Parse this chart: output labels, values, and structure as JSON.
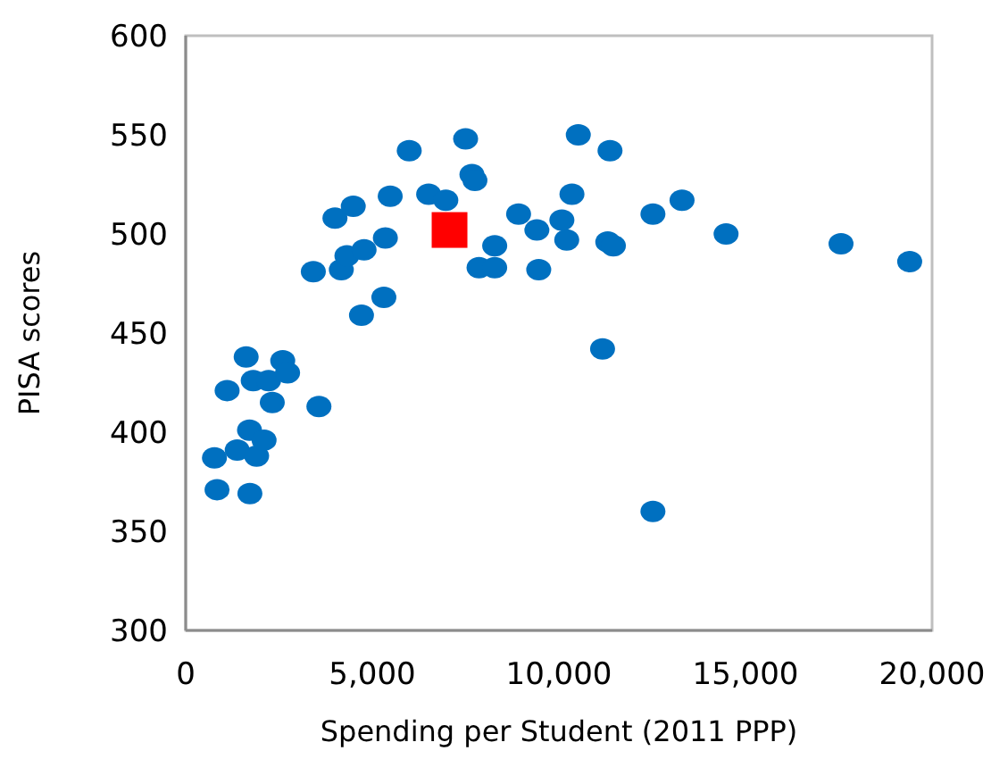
{
  "chart_data": {
    "type": "scatter",
    "xlabel": "Spending per Student (2011 PPP)",
    "ylabel": "PISA scores",
    "xlim": [
      0,
      20000
    ],
    "xticks": [
      {
        "value": 0,
        "label": "0"
      },
      {
        "value": 5000,
        "label": "5,000"
      },
      {
        "value": 10000,
        "label": "10,000"
      },
      {
        "value": 15000,
        "label": "15,000"
      },
      {
        "value": 20000,
        "label": "20,000"
      }
    ],
    "ylim": [
      300,
      600
    ],
    "yticks": [
      300,
      350,
      400,
      450,
      500,
      550,
      600
    ],
    "grid": false,
    "series": [
      {
        "color": "#0070c0",
        "marker": "circle",
        "x": [
          770,
          840,
          1720,
          1110,
          1380,
          1710,
          1900,
          2100,
          1620,
          1810,
          2220,
          2320,
          2600,
          2730,
          3570,
          3420,
          4000,
          4170,
          4320,
          4490,
          4780,
          4710,
          5350,
          5310,
          5480,
          5990,
          6510,
          6970,
          7500,
          7670,
          7750,
          7860,
          8280,
          8280,
          8920,
          9410,
          9460,
          10080,
          10210,
          10350,
          10520,
          11170,
          11370,
          11310,
          11460,
          12520,
          12520,
          13300,
          14480,
          17560,
          19400
        ],
        "values": [
          387,
          371,
          369,
          421,
          391,
          401,
          388,
          396,
          438,
          426,
          426,
          415,
          436,
          430,
          413,
          481,
          508,
          482,
          489,
          514,
          492,
          459,
          498,
          468,
          519,
          542,
          520,
          517,
          548,
          530,
          527,
          483,
          483,
          494,
          510,
          502,
          482,
          507,
          497,
          520,
          550,
          442,
          542,
          496,
          494,
          510,
          360,
          517,
          500,
          495,
          486
        ]
      },
      {
        "color": "#ff0000",
        "marker": "square",
        "x": [
          7070
        ],
        "values": [
          502
        ]
      }
    ]
  }
}
